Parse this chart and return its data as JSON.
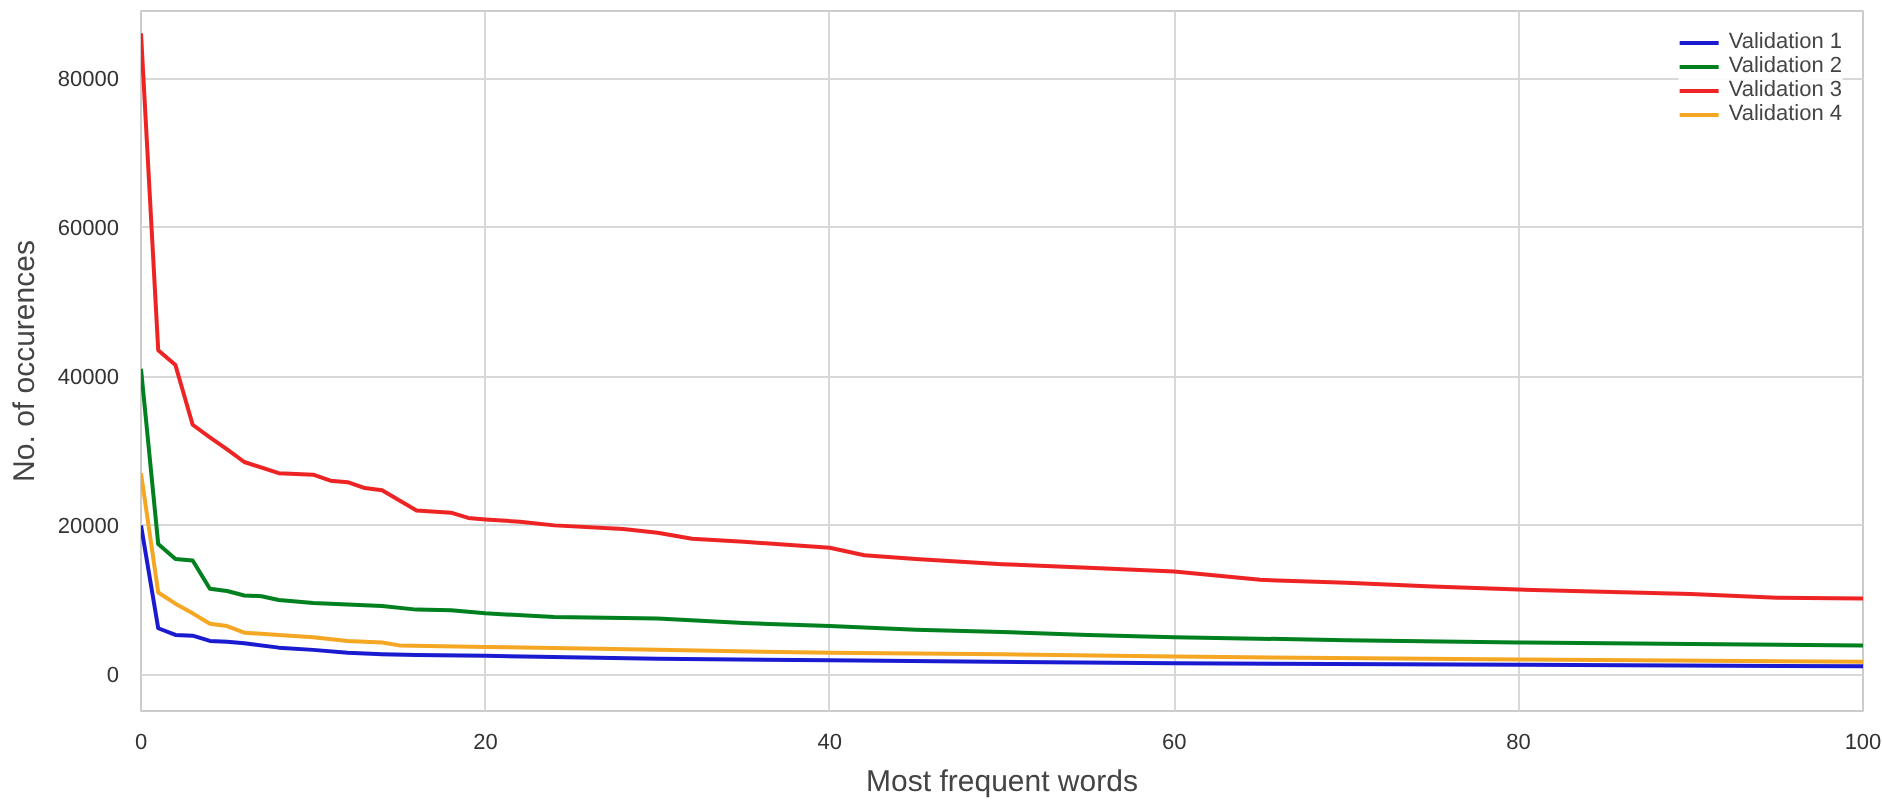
{
  "chart_data": {
    "type": "line",
    "xlabel": "Most frequent words",
    "ylabel": "No. of occurences",
    "xlim": [
      0,
      100
    ],
    "ylim": [
      -4900,
      89000
    ],
    "xticks": [
      0,
      20,
      40,
      60,
      80,
      100
    ],
    "yticks": [
      0,
      20000,
      40000,
      60000,
      80000
    ],
    "grid": true,
    "legend": "top right",
    "line_style": "solid",
    "marker": "none",
    "series": [
      {
        "name": "Validation 1",
        "color": "#1a1ad0",
        "x": [
          0,
          1,
          2,
          3,
          4,
          5,
          6,
          8,
          10,
          12,
          14,
          16,
          20,
          30,
          40,
          60,
          80,
          100
        ],
        "values": [
          20000,
          6200,
          5300,
          5200,
          4500,
          4400,
          4200,
          3600,
          3300,
          2900,
          2700,
          2600,
          2500,
          2100,
          1900,
          1500,
          1300,
          1100
        ]
      },
      {
        "name": "Validation 2",
        "color": "#00801e",
        "x": [
          0,
          1,
          2,
          3,
          4,
          5,
          6,
          7,
          8,
          10,
          12,
          14,
          16,
          18,
          20,
          24,
          30,
          35,
          40,
          45,
          50,
          55,
          60,
          70,
          80,
          90,
          100
        ],
        "values": [
          41000,
          17500,
          15500,
          15300,
          11500,
          11200,
          10600,
          10500,
          10000,
          9600,
          9400,
          9200,
          8700,
          8600,
          8200,
          7700,
          7500,
          6900,
          6500,
          6000,
          5700,
          5300,
          5000,
          4600,
          4300,
          4100,
          3900
        ]
      },
      {
        "name": "Validation 3",
        "color": "#ee2424",
        "x": [
          0,
          1,
          2,
          3,
          4,
          5,
          6,
          8,
          10,
          11,
          12,
          13,
          14,
          16,
          18,
          19,
          20,
          22,
          24,
          28,
          30,
          32,
          35,
          40,
          42,
          45,
          50,
          55,
          60,
          65,
          70,
          75,
          80,
          90,
          95,
          100
        ],
        "values": [
          86000,
          43500,
          41500,
          33500,
          31800,
          30200,
          28500,
          27000,
          26800,
          26000,
          25800,
          25000,
          24700,
          22000,
          21700,
          21000,
          20800,
          20500,
          20000,
          19500,
          19000,
          18200,
          17800,
          17000,
          16000,
          15500,
          14800,
          14300,
          13800,
          12700,
          12300,
          11800,
          11400,
          10800,
          10300,
          10200
        ]
      },
      {
        "name": "Validation 4",
        "color": "#f5a623",
        "x": [
          0,
          1,
          2,
          3,
          4,
          5,
          6,
          8,
          10,
          12,
          14,
          15,
          20,
          30,
          40,
          50,
          60,
          80,
          100
        ],
        "values": [
          27000,
          11000,
          9500,
          8200,
          6800,
          6500,
          5600,
          5300,
          5000,
          4500,
          4300,
          3900,
          3700,
          3300,
          2900,
          2700,
          2400,
          2000,
          1700
        ]
      }
    ]
  }
}
